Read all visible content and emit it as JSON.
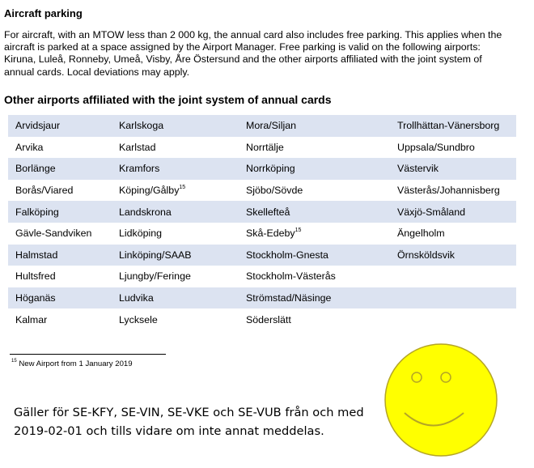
{
  "parking": {
    "title": "Aircraft parking",
    "body": "For aircraft, with an MTOW less than 2 000 kg, the annual card also includes free parking. This applies when the aircraft is parked at a space assigned by the Airport Manager. Free parking is valid on the following airports: Kiruna, Luleå, Ronneby, Umeå, Visby, Åre Östersund and the other airports affiliated with the joint system of annual cards. Local deviations may apply."
  },
  "table": {
    "title": "Other airports affiliated with the joint system of annual cards",
    "rows": [
      [
        "Arvidsjaur",
        "Karlskoga",
        "Mora/Siljan",
        "Trollhättan-Vänersborg"
      ],
      [
        "Arvika",
        "Karlstad",
        "Norrtälje",
        "Uppsala/Sundbro"
      ],
      [
        "Borlänge",
        "Kramfors",
        "Norrköping",
        "Västervik"
      ],
      [
        "Borås/Viared",
        "Köping/Gålby",
        "Sjöbo/Sövde",
        "Västerås/Johannisberg"
      ],
      [
        "Falköping",
        "Landskrona",
        "Skellefteå",
        "Växjö-Småland"
      ],
      [
        "Gävle-Sandviken",
        "Lidköping",
        "Skå-Edeby",
        "Ängelholm"
      ],
      [
        "Halmstad",
        "Linköping/SAAB",
        "Stockholm-Gnesta",
        "Örnsköldsvik"
      ],
      [
        "Hultsfred",
        "Ljungby/Feringe",
        "Stockholm-Västerås",
        ""
      ],
      [
        "Höganäs",
        "Ludvika",
        "Strömstad/Näsinge",
        ""
      ],
      [
        "Kalmar",
        "Lycksele",
        "Söderslätt",
        ""
      ]
    ],
    "superscripts": [
      {
        "row": 3,
        "col": 1,
        "mark": "15"
      },
      {
        "row": 5,
        "col": 2,
        "mark": "15"
      }
    ],
    "shaded_rows": [
      0,
      2,
      4,
      6,
      8
    ],
    "row_shade_color": "#dce3f1"
  },
  "footnote": {
    "mark": "15",
    "text": "New Airport from 1 January 2019"
  },
  "note": {
    "text": "Gäller för SE-KFY, SE-VIN, SE-VKE och SE-VUB från och med 2019-02-01 och tills vidare om inte annat meddelas."
  },
  "smiley": {
    "icon": "smiley-face",
    "fill_color": "#ffff00",
    "stroke_color": "#b4a526"
  }
}
